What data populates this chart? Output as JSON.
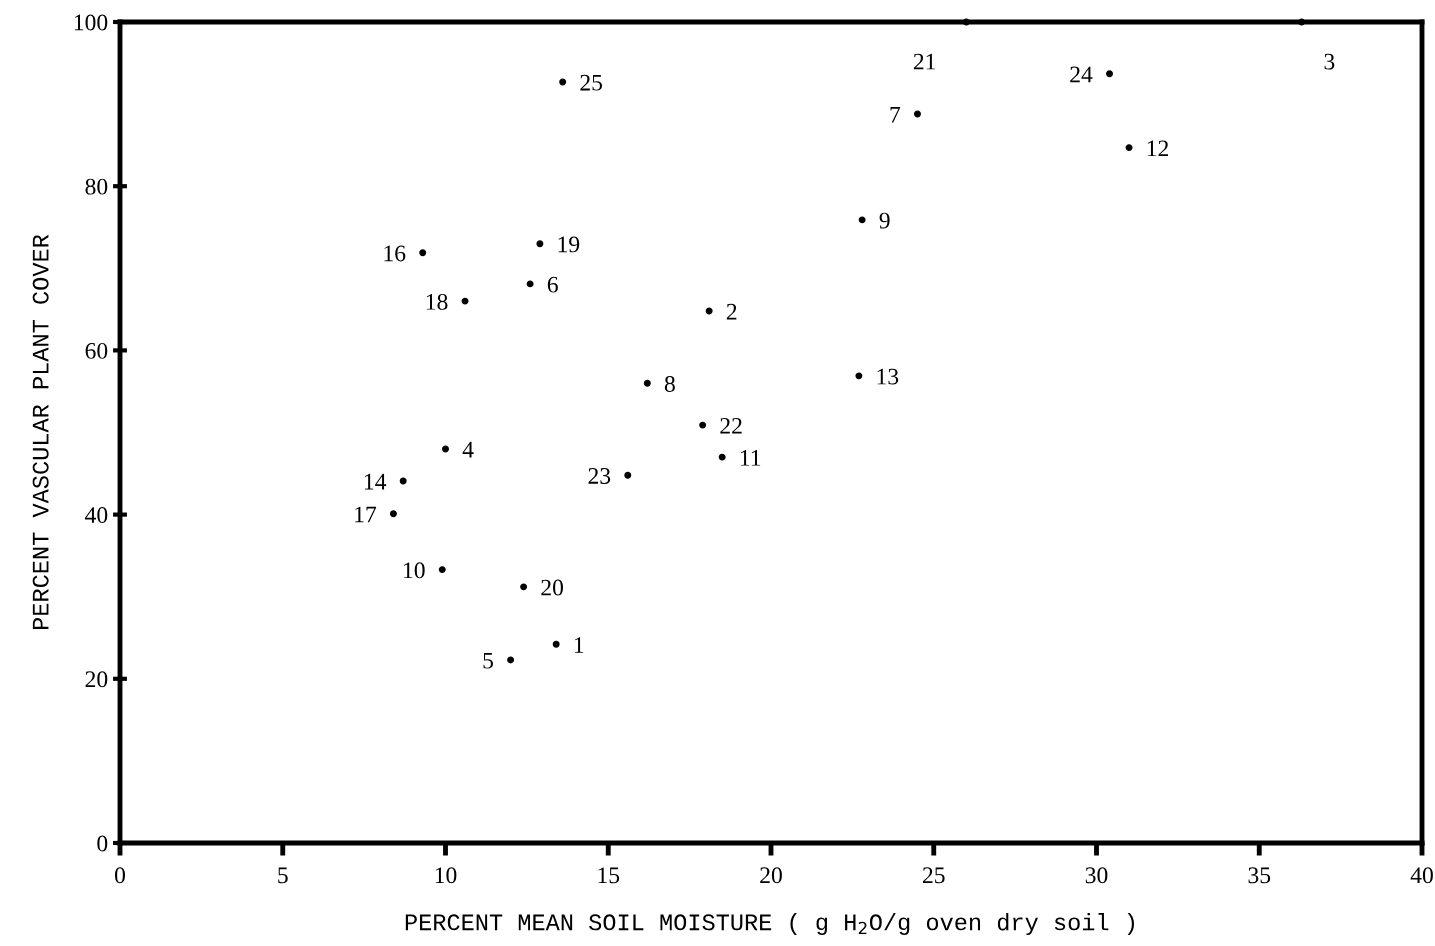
{
  "chart_data": {
    "type": "scatter",
    "xlabel": "PERCENT MEAN SOIL MOISTURE ( g H$_{2}$O/g oven dry soil )",
    "ylabel": "PERCENT VASCULAR PLANT COVER",
    "x": [
      13.4,
      18.1,
      36.3,
      10.0,
      12.0,
      12.6,
      24.5,
      16.2,
      22.8,
      9.9,
      18.5,
      31.0,
      22.7,
      8.7,
      30.4,
      9.3,
      8.4,
      10.6,
      12.9,
      12.4,
      26.0,
      17.9,
      15.6,
      13.6
    ],
    "values": [
      24.2,
      64.8,
      100,
      48.0,
      22.3,
      68.1,
      88.8,
      56.0,
      75.9,
      33.3,
      47.0,
      84.7,
      56.9,
      44.1,
      93.7,
      71.9,
      40.1,
      66.0,
      73.0,
      31.2,
      100,
      50.9,
      44.8,
      92.7
    ],
    "color": "#000000",
    "annotations": [
      {
        "text": "1",
        "x": 13.4,
        "y": 24.2
      },
      {
        "text": "2",
        "x": 18.1,
        "y": 64.8
      },
      {
        "text": "3",
        "x": 36.3,
        "y": 100
      },
      {
        "text": "4",
        "x": 10.0,
        "y": 48.0
      },
      {
        "text": "5",
        "x": 12.0,
        "y": 22.3
      },
      {
        "text": "6",
        "x": 12.6,
        "y": 68.1
      },
      {
        "text": "7",
        "x": 24.5,
        "y": 88.8
      },
      {
        "text": "8",
        "x": 16.2,
        "y": 56.0
      },
      {
        "text": "9",
        "x": 22.8,
        "y": 75.9
      },
      {
        "text": "10",
        "x": 9.9,
        "y": 33.3
      },
      {
        "text": "11",
        "x": 18.5,
        "y": 47.0
      },
      {
        "text": "12",
        "x": 31.0,
        "y": 84.7
      },
      {
        "text": "13",
        "x": 22.7,
        "y": 56.9
      },
      {
        "text": "14",
        "x": 8.7,
        "y": 44.1
      },
      {
        "text": "24",
        "x": 30.4,
        "y": 93.7
      },
      {
        "text": "16",
        "x": 9.3,
        "y": 71.9
      },
      {
        "text": "17",
        "x": 8.4,
        "y": 40.1
      },
      {
        "text": "18",
        "x": 10.6,
        "y": 66.0
      },
      {
        "text": "19",
        "x": 12.9,
        "y": 73.0
      },
      {
        "text": "20",
        "x": 12.4,
        "y": 31.2
      },
      {
        "text": "21",
        "x": 26.0,
        "y": 100
      },
      {
        "text": "22",
        "x": 17.9,
        "y": 50.9
      },
      {
        "text": "23",
        "x": 15.6,
        "y": 44.8
      },
      {
        "text": "25",
        "x": 13.6,
        "y": 92.7
      }
    ],
    "xlim": [
      0,
      40
    ],
    "xticks": [
      0,
      5,
      10,
      15,
      20,
      25,
      30,
      35,
      40
    ],
    "ylim": [
      0,
      100
    ],
    "yticks": [
      0,
      20,
      40,
      60,
      80,
      100
    ],
    "grid": false,
    "legend": false
  }
}
